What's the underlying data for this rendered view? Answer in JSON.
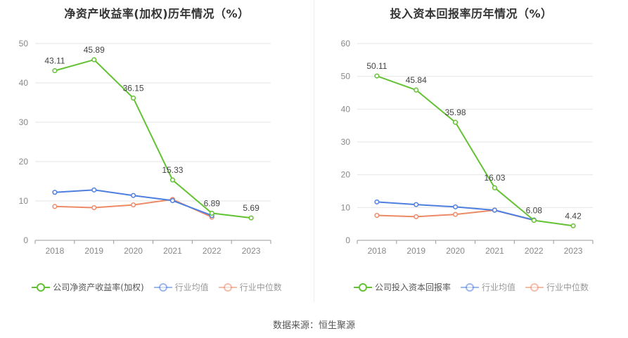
{
  "source": "数据来源：恒生聚源",
  "chart_data": [
    {
      "type": "line",
      "title": "净资产收益率(加权)历年情况（%）",
      "categories": [
        "2018",
        "2019",
        "2020",
        "2021",
        "2022",
        "2023"
      ],
      "ylim": [
        0,
        50
      ],
      "yticks": [
        0,
        10,
        20,
        30,
        40,
        50
      ],
      "grid": true,
      "legend_position": "bottom",
      "series": [
        {
          "name": "公司净资产收益率(加权)",
          "color": "#63c233",
          "values": [
            43.11,
            45.89,
            36.15,
            15.33,
            6.89,
            5.69
          ],
          "labels": [
            "43.11",
            "45.89",
            "36.15",
            "15.33",
            "6.89",
            "5.69"
          ]
        },
        {
          "name": "行业均值",
          "color": "#4e7fe0",
          "values": [
            12.2,
            12.8,
            11.4,
            10.1,
            6.3,
            null
          ]
        },
        {
          "name": "行业中位数",
          "color": "#ec8a66",
          "values": [
            8.6,
            8.3,
            9.0,
            10.4,
            5.9,
            null
          ]
        }
      ]
    },
    {
      "type": "line",
      "title": "投入资本回报率历年情况（%）",
      "categories": [
        "2018",
        "2019",
        "2020",
        "2021",
        "2022",
        "2023"
      ],
      "ylim": [
        0,
        60
      ],
      "yticks": [
        0,
        10,
        20,
        30,
        40,
        50,
        60
      ],
      "grid": true,
      "legend_position": "bottom",
      "series": [
        {
          "name": "公司投入资本回报率",
          "color": "#63c233",
          "values": [
            50.11,
            45.84,
            35.98,
            16.03,
            6.08,
            4.42
          ],
          "labels": [
            "50.11",
            "45.84",
            "35.98",
            "16.03",
            "6.08",
            "4.42"
          ]
        },
        {
          "name": "行业均值",
          "color": "#4e7fe0",
          "values": [
            11.7,
            10.9,
            10.2,
            9.2,
            6.2,
            null
          ]
        },
        {
          "name": "行业中位数",
          "color": "#ec8a66",
          "values": [
            7.6,
            7.2,
            7.9,
            9.2,
            6.1,
            null
          ]
        }
      ]
    }
  ]
}
